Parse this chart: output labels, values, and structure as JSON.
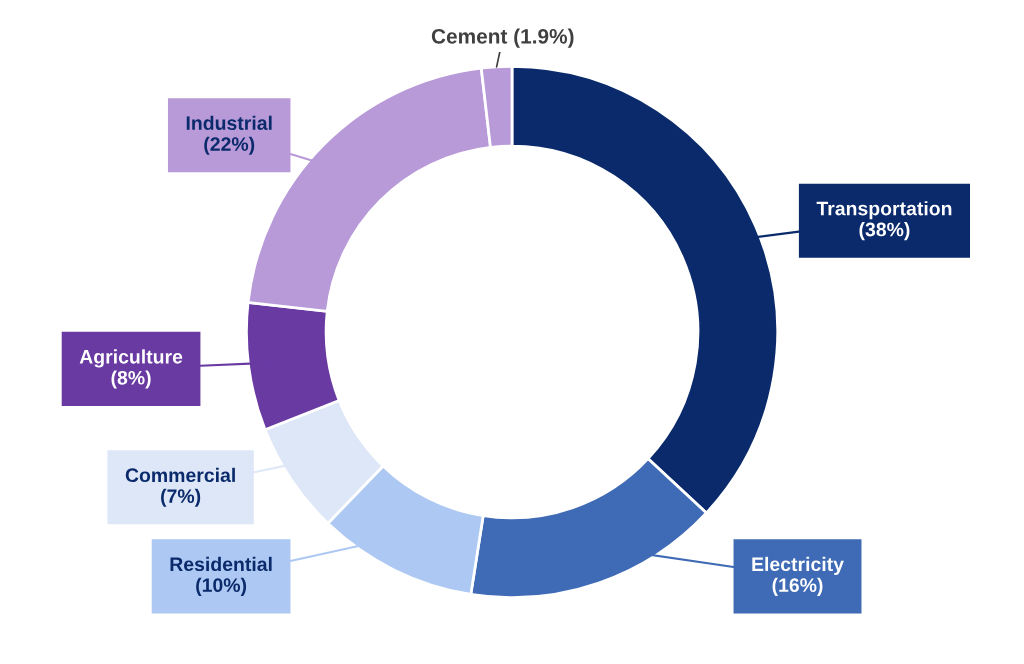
{
  "chart_data": {
    "type": "donut",
    "categories": [
      "Transportation",
      "Electricity",
      "Residential",
      "Commercial",
      "Agriculture",
      "Industrial",
      "Cement"
    ],
    "values": [
      38,
      16,
      10,
      7,
      8,
      22,
      1.9
    ],
    "colors": [
      "#0a2a6b",
      "#3f6ab5",
      "#adc8f3",
      "#dde7f8",
      "#6a3aa3",
      "#b89ad9",
      "#b89ad9"
    ],
    "value_labels": [
      "(38%)",
      "(16%)",
      "(10%)",
      "(7%)",
      "(8%)",
      "(22%)",
      "(1.9%)"
    ]
  }
}
